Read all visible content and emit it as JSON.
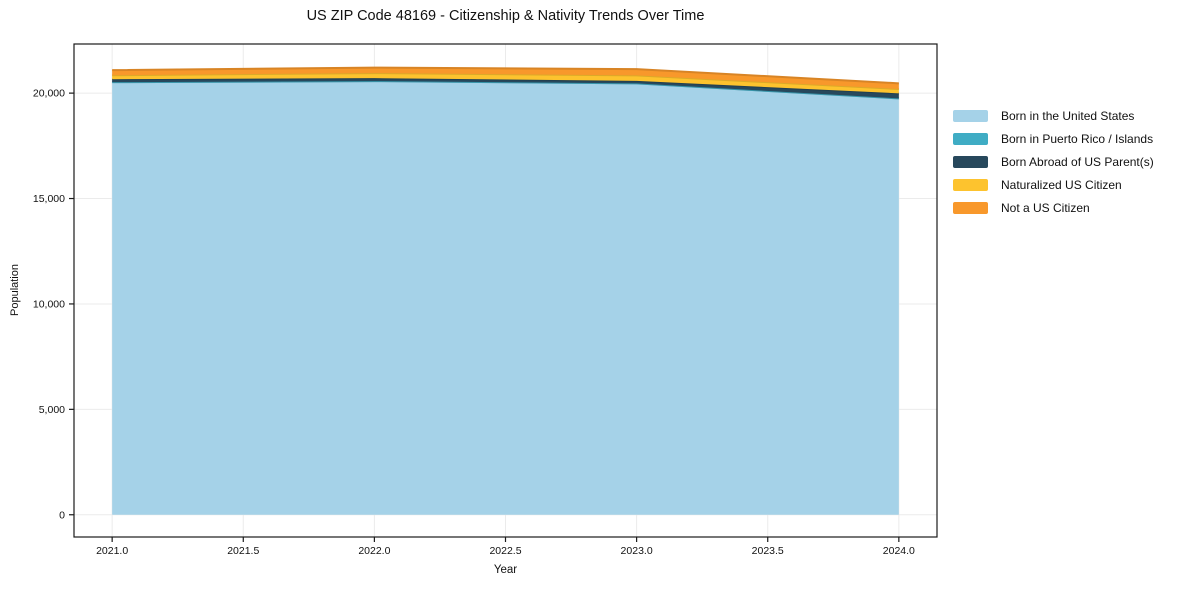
{
  "chart_data": {
    "type": "area",
    "stacked": true,
    "title": "US ZIP Code 48169 - Citizenship & Nativity Trends Over Time",
    "xlabel": "Year",
    "ylabel": "Population",
    "x": [
      2021,
      2022,
      2023,
      2024
    ],
    "series": [
      {
        "name": "Born in the United States",
        "color": "#A5D2E8",
        "values": [
          20520,
          20570,
          20460,
          19750
        ]
      },
      {
        "name": "Born in Puerto Rico / Islands",
        "color": "#3FACC4",
        "values": [
          0,
          0,
          0,
          0
        ]
      },
      {
        "name": "Born Abroad of US Parent(s)",
        "color": "#27485C",
        "values": [
          140,
          140,
          120,
          240
        ]
      },
      {
        "name": "Naturalized US Citizen",
        "color": "#FDC32E",
        "values": [
          190,
          240,
          260,
          205
        ]
      },
      {
        "name": "Not a US Citizen",
        "color": "#F8982B",
        "values": [
          240,
          260,
          300,
          270
        ]
      }
    ],
    "totals": [
      21090,
      21210,
      21140,
      20465
    ],
    "xticks": [
      2021.0,
      2021.5,
      2022.0,
      2022.5,
      2023.0,
      2023.5,
      2024.0
    ],
    "xtick_labels": [
      "2021.0",
      "2021.5",
      "2022.0",
      "2022.5",
      "2023.0",
      "2023.5",
      "2024.0"
    ],
    "yticks": [
      0,
      5000,
      10000,
      15000,
      20000
    ],
    "ytick_labels": [
      "0",
      "5,000",
      "10,000",
      "15,000",
      "20,000"
    ],
    "xlim": [
      2020.8545,
      2024.1455
    ],
    "ylim": [
      -1055,
      22330
    ],
    "grid": true,
    "grid_color": "#EBEBEB",
    "axis_color": "#1a1a1a",
    "legend_position": "right"
  }
}
